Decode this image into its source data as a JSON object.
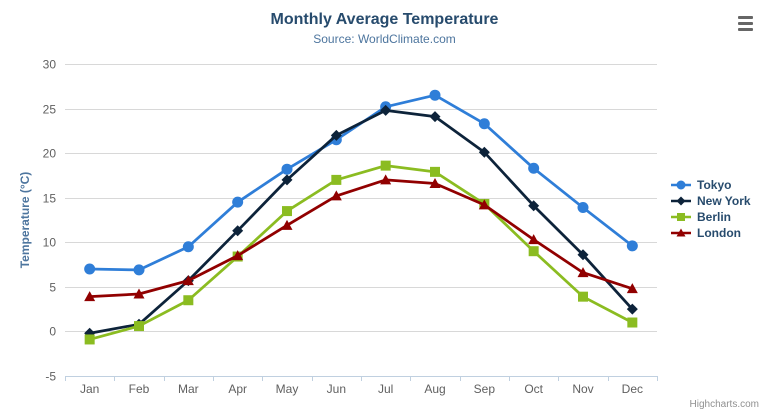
{
  "chart_data": {
    "type": "line",
    "title": "Monthly Average Temperature",
    "subtitle": "Source: WorldClimate.com",
    "categories": [
      "Jan",
      "Feb",
      "Mar",
      "Apr",
      "May",
      "Jun",
      "Jul",
      "Aug",
      "Sep",
      "Oct",
      "Nov",
      "Dec"
    ],
    "series": [
      {
        "name": "Tokyo",
        "color": "#2f7ed8",
        "marker": "circle",
        "values": [
          7.0,
          6.9,
          9.5,
          14.5,
          18.2,
          21.5,
          25.2,
          26.5,
          23.3,
          18.3,
          13.9,
          9.6
        ]
      },
      {
        "name": "New York",
        "color": "#0d233a",
        "marker": "diamond",
        "values": [
          -0.2,
          0.8,
          5.7,
          11.3,
          17.0,
          22.0,
          24.8,
          24.1,
          20.1,
          14.1,
          8.6,
          2.5
        ]
      },
      {
        "name": "Berlin",
        "color": "#8bbc21",
        "marker": "square",
        "values": [
          -0.9,
          0.6,
          3.5,
          8.4,
          13.5,
          17.0,
          18.6,
          17.9,
          14.3,
          9.0,
          3.9,
          1.0
        ]
      },
      {
        "name": "London",
        "color": "#910000",
        "marker": "triangle",
        "values": [
          3.9,
          4.2,
          5.7,
          8.5,
          11.9,
          15.2,
          17.0,
          16.6,
          14.2,
          10.3,
          6.6,
          4.8
        ]
      }
    ],
    "xlabel": "",
    "ylabel": "Temperature (°C)",
    "ylim": [
      -5,
      30
    ],
    "ytick_interval": 5,
    "ytick_labels": [
      "-5",
      "0",
      "5",
      "10",
      "15",
      "20",
      "25",
      "30"
    ],
    "grid": true,
    "legend_position": "right"
  },
  "export_menu": {
    "icon_name": "hamburger-menu-icon"
  },
  "credits": {
    "label": "Highcharts.com"
  },
  "colors": {
    "title_text": "#274b6d",
    "subtitle_text": "#4d759e",
    "axis_title_text": "#4d759e",
    "tick_label_text": "#606060",
    "gridline": "#d8d8d8",
    "axis_line": "#c0d0e0",
    "legend_text": "#274b6d",
    "menu_icon": "#666666",
    "credits_text": "#909090"
  }
}
